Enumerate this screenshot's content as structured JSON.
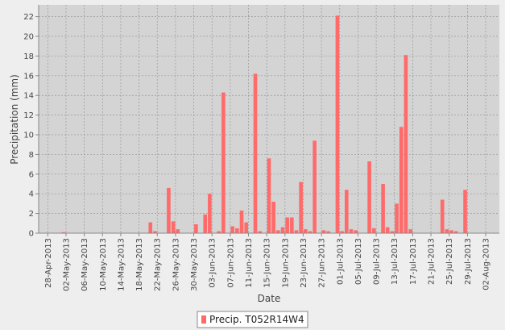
{
  "chart_data": {
    "type": "bar",
    "x_label": "Date",
    "y_label": "Precipitation (mm)",
    "series": [
      {
        "name": "Precip. T052R14W4",
        "color": "#ff6a6a",
        "x": [
          "01-May-2013",
          "20-May-2013",
          "21-May-2013",
          "24-May-2013",
          "25-May-2013",
          "26-May-2013",
          "30-May-2013",
          "01-Jun-2013",
          "02-Jun-2013",
          "04-Jun-2013",
          "05-Jun-2013",
          "07-Jun-2013",
          "08-Jun-2013",
          "09-Jun-2013",
          "10-Jun-2013",
          "12-Jun-2013",
          "13-Jun-2013",
          "15-Jun-2013",
          "16-Jun-2013",
          "17-Jun-2013",
          "18-Jun-2013",
          "19-Jun-2013",
          "20-Jun-2013",
          "21-Jun-2013",
          "22-Jun-2013",
          "23-Jun-2013",
          "24-Jun-2013",
          "25-Jun-2013",
          "27-Jun-2013",
          "28-Jun-2013",
          "30-Jun-2013",
          "01-Jul-2013",
          "02-Jul-2013",
          "03-Jul-2013",
          "04-Jul-2013",
          "07-Jul-2013",
          "08-Jul-2013",
          "10-Jul-2013",
          "11-Jul-2013",
          "12-Jul-2013",
          "13-Jul-2013",
          "14-Jul-2013",
          "15-Jul-2013",
          "16-Jul-2013",
          "23-Jul-2013",
          "24-Jul-2013",
          "25-Jul-2013",
          "26-Jul-2013",
          "28-Jul-2013"
        ],
        "values": [
          0.1,
          1.1,
          0.2,
          4.6,
          1.2,
          0.4,
          0.9,
          1.9,
          4.0,
          0.2,
          14.3,
          0.7,
          0.5,
          2.3,
          1.1,
          16.2,
          0.2,
          7.6,
          3.2,
          0.3,
          0.6,
          1.6,
          1.6,
          0.3,
          5.2,
          0.4,
          0.2,
          9.4,
          0.3,
          0.2,
          22.1,
          0.2,
          4.4,
          0.4,
          0.3,
          7.3,
          0.5,
          5.0,
          0.6,
          0.2,
          3.0,
          10.8,
          18.1,
          0.4,
          3.4,
          0.4,
          0.3,
          0.2,
          4.4
        ]
      }
    ],
    "xlim": [
      "26-Apr-2013",
      "05-Aug-2013"
    ],
    "xticks": [
      "28-Apr-2013",
      "02-May-2013",
      "06-May-2013",
      "10-May-2013",
      "14-May-2013",
      "18-May-2013",
      "22-May-2013",
      "26-May-2013",
      "30-May-2013",
      "03-Jun-2013",
      "07-Jun-2013",
      "11-Jun-2013",
      "15-Jun-2013",
      "19-Jun-2013",
      "23-Jun-2013",
      "27-Jun-2013",
      "01-Jul-2013",
      "05-Jul-2013",
      "09-Jul-2013",
      "13-Jul-2013",
      "17-Jul-2013",
      "21-Jul-2013",
      "25-Jul-2013",
      "29-Jul-2013",
      "02-Aug-2013"
    ],
    "ylim": [
      0,
      23.2
    ],
    "yticks": [
      0,
      2,
      4,
      6,
      8,
      10,
      12,
      14,
      16,
      18,
      20,
      22
    ],
    "grid": true
  }
}
